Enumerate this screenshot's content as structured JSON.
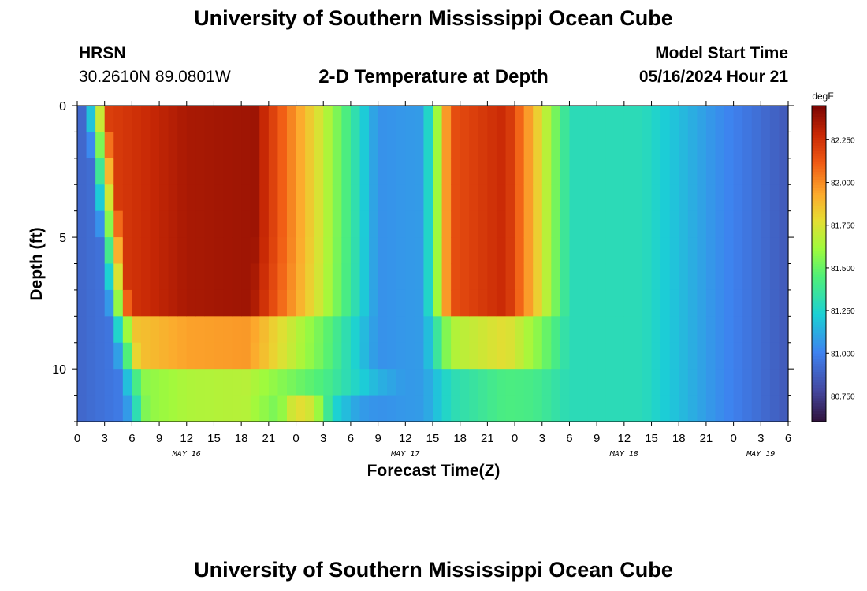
{
  "header": {
    "title": "University of Southern Mississippi Ocean Cube",
    "station": "HRSN",
    "coords": "30.2610N  89.0801W",
    "subtitle": "2-D Temperature at Depth",
    "start_label": "Model Start Time",
    "start_value": "05/16/2024 Hour 21"
  },
  "footer": {
    "title": "University of Southern Mississippi Ocean Cube"
  },
  "chart_data": {
    "type": "heatmap",
    "title": "2-D Temperature at Depth",
    "xlabel": "Forecast Time(Z)",
    "ylabel": "Depth (ft)",
    "x_hours_range": [
      0,
      78
    ],
    "x_tick_labels": [
      "0",
      "3",
      "6",
      "9",
      "12",
      "15",
      "18",
      "21",
      "0",
      "3",
      "6",
      "9",
      "12",
      "15",
      "18",
      "21",
      "0",
      "3",
      "6",
      "9",
      "12",
      "15",
      "18",
      "21",
      "0",
      "3",
      "6"
    ],
    "day_labels": [
      {
        "label": "MAY 16",
        "hour": 12
      },
      {
        "label": "MAY 17",
        "hour": 36
      },
      {
        "label": "MAY 18",
        "hour": 60
      },
      {
        "label": "MAY 19",
        "hour": 75
      }
    ],
    "y_range": [
      0,
      12
    ],
    "y_tick_labels": [
      "0",
      "5",
      "10"
    ],
    "y_tick_values": [
      0,
      5,
      10
    ],
    "colorbar": {
      "unit": "degF",
      "range": [
        80.6,
        82.45
      ],
      "tick_values": [
        80.75,
        81.0,
        81.25,
        81.5,
        81.75,
        82.0,
        82.25
      ],
      "tick_labels": [
        "80.750",
        "81.000",
        "81.250",
        "81.500",
        "81.750",
        "82.000",
        "82.250"
      ]
    },
    "grid": false
  }
}
